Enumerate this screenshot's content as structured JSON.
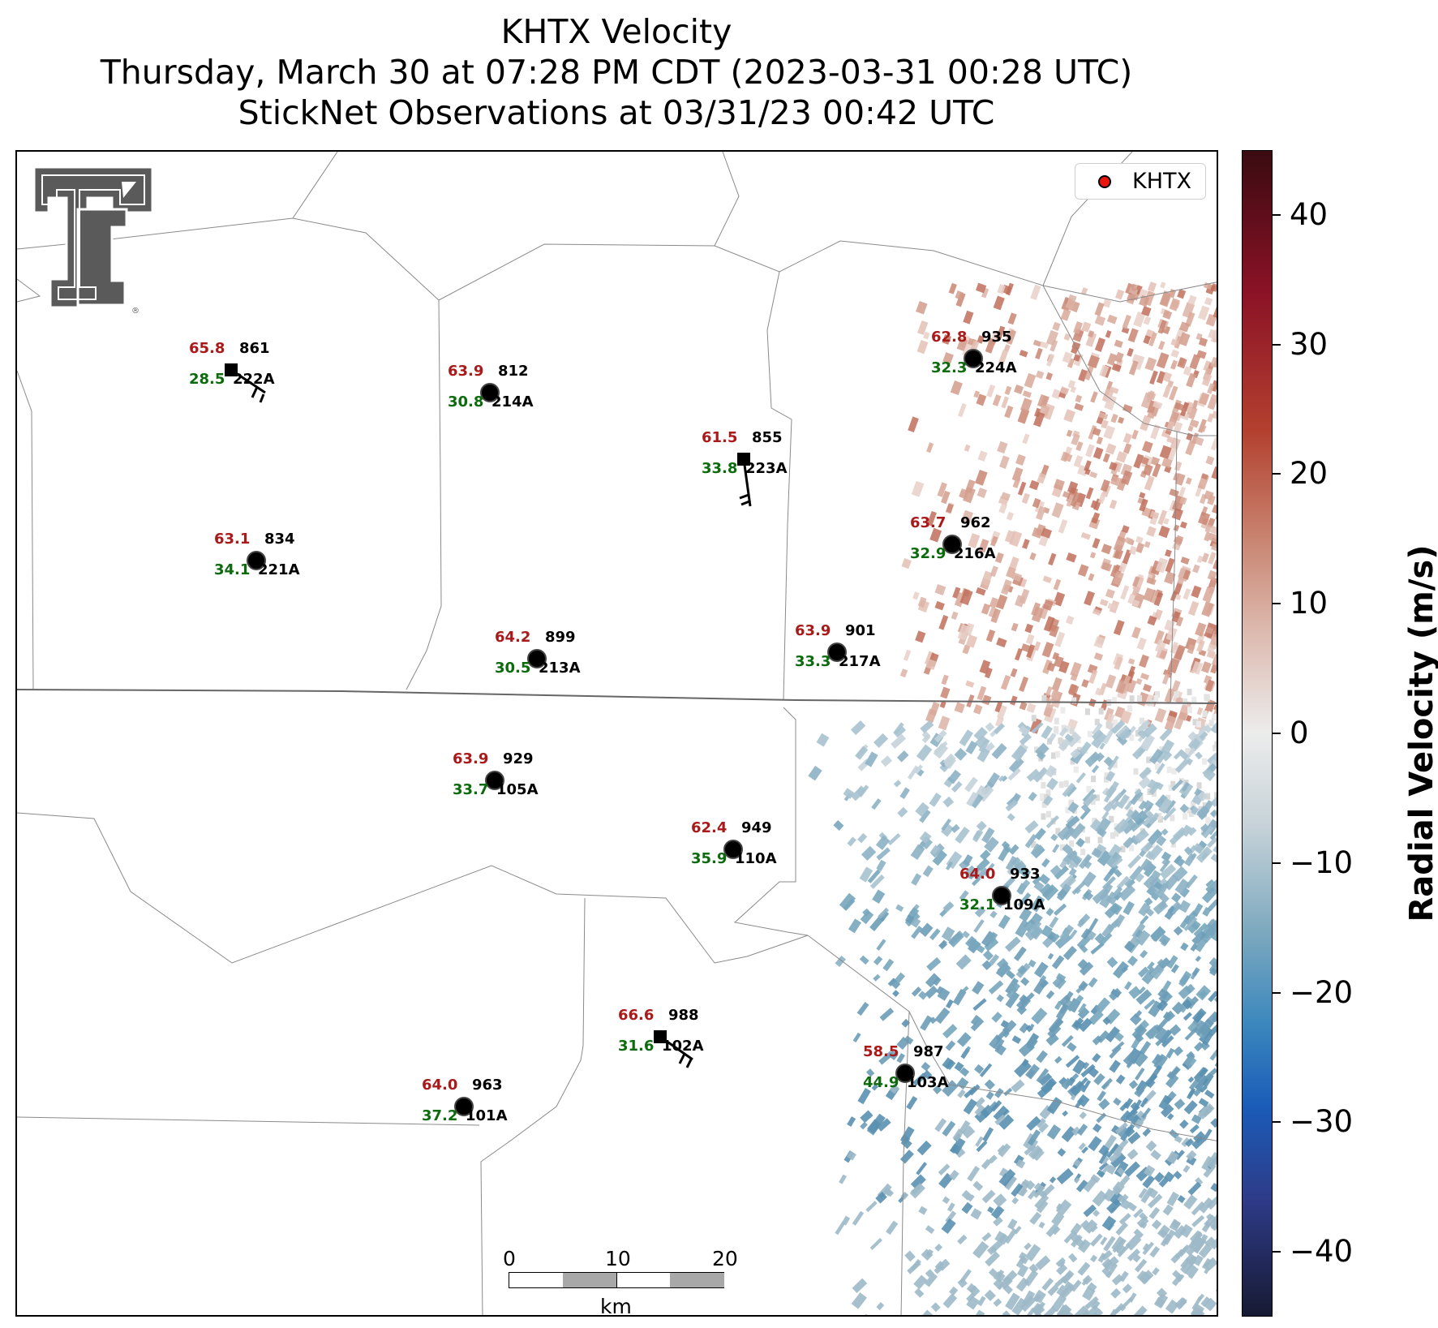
{
  "title": {
    "line1": "KHTX Velocity",
    "line2": "Thursday, March 30 at 07:28 PM CDT (2023-03-31 00:28 UTC)",
    "line3": "StickNet Observations at 03/31/23 00:42 UTC"
  },
  "legend": {
    "label": "KHTX",
    "marker_color": "#e8170d"
  },
  "colorbar": {
    "label": "Radial Velocity (m/s)",
    "ticks": [
      "40",
      "30",
      "20",
      "10",
      "0",
      "−10",
      "−20",
      "−30",
      "−40"
    ],
    "range": [
      -45,
      45
    ],
    "colors": {
      "max": "#3a0b11",
      "mid": "#ececec",
      "min": "#171a33"
    }
  },
  "scale_bar": {
    "ticks": [
      "0",
      "10",
      "20"
    ],
    "unit": "km"
  },
  "logo": {
    "name": "texas-tech-double-t",
    "color": "#5a5a5a"
  },
  "stations": [
    {
      "id": "222A",
      "temp": "65.8",
      "dew": "28.5",
      "pressure": "861",
      "marker": "square"
    },
    {
      "id": "214A",
      "temp": "63.9",
      "dew": "30.8",
      "pressure": "812",
      "marker": "circle"
    },
    {
      "id": "223A",
      "temp": "61.5",
      "dew": "33.8",
      "pressure": "855",
      "marker": "square"
    },
    {
      "id": "224A",
      "temp": "62.8",
      "dew": "32.3",
      "pressure": "935",
      "marker": "circle"
    },
    {
      "id": "221A",
      "temp": "63.1",
      "dew": "34.1",
      "pressure": "834",
      "marker": "circle"
    },
    {
      "id": "216A",
      "temp": "63.7",
      "dew": "32.9",
      "pressure": "962",
      "marker": "circle"
    },
    {
      "id": "213A",
      "temp": "64.2",
      "dew": "30.5",
      "pressure": "899",
      "marker": "circle"
    },
    {
      "id": "217A",
      "temp": "63.9",
      "dew": "33.3",
      "pressure": "901",
      "marker": "circle"
    },
    {
      "id": "105A",
      "temp": "63.9",
      "dew": "33.7",
      "pressure": "929",
      "marker": "circle"
    },
    {
      "id": "110A",
      "temp": "62.4",
      "dew": "35.9",
      "pressure": "949",
      "marker": "circle"
    },
    {
      "id": "109A",
      "temp": "64.0",
      "dew": "32.1",
      "pressure": "933",
      "marker": "circle"
    },
    {
      "id": "102A",
      "temp": "66.6",
      "dew": "31.6",
      "pressure": "988",
      "marker": "square"
    },
    {
      "id": "103A",
      "temp": "58.5",
      "dew": "44.9",
      "pressure": "987",
      "marker": "circle"
    },
    {
      "id": "101A",
      "temp": "64.0",
      "dew": "37.2",
      "pressure": "963",
      "marker": "circle"
    }
  ]
}
